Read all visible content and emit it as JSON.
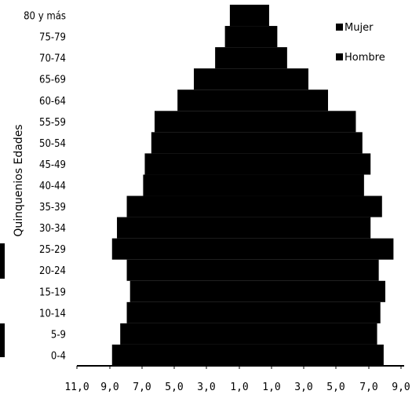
{
  "chart_data": {
    "type": "bar",
    "orientation": "horizontal",
    "layout": "population-pyramid",
    "ylabel": "Quinquenios Edades",
    "categories": [
      "0-4",
      "5-9",
      "10-14",
      "15-19",
      "20-24",
      "25-29",
      "30-34",
      "35-39",
      "40-44",
      "45-49",
      "50-54",
      "55-59",
      "60-64",
      "65-69",
      "70-74",
      "75-79",
      "80 y más"
    ],
    "xticks": [
      "11,0",
      "9,0",
      "7,0",
      "5,0",
      "3,0",
      "1,0",
      "1,0",
      "3,0",
      "5,0",
      "7,0",
      "9,0"
    ],
    "xlim": [
      -11,
      9
    ],
    "series": [
      {
        "name": "Mujer",
        "side": "left",
        "values": [
          8.5,
          8.0,
          7.6,
          7.4,
          7.6,
          8.5,
          8.2,
          7.6,
          6.6,
          6.5,
          6.1,
          5.9,
          4.5,
          3.5,
          2.2,
          1.6,
          1.3
        ]
      },
      {
        "name": "Hombre",
        "side": "right",
        "values": [
          8.1,
          7.7,
          7.9,
          8.2,
          7.8,
          8.7,
          7.3,
          8.0,
          6.9,
          7.3,
          6.8,
          6.4,
          4.7,
          3.5,
          2.2,
          1.6,
          1.1
        ]
      }
    ],
    "legend_position": "top-right",
    "grid": false
  }
}
